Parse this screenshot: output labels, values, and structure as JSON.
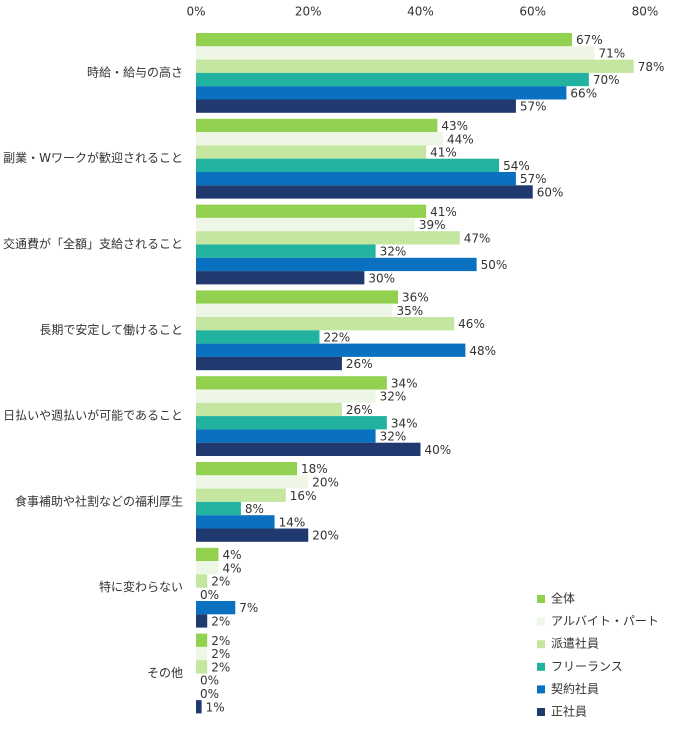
{
  "chart_data": {
    "type": "barh",
    "categories": [
      "時給・給与の高さ",
      "副業・Wワークが歓迎されること",
      "交通費が「全額」支給されること",
      "長期で安定して働けること",
      "日払いや週払いが可能であること",
      "食事補助や社割などの福利厚生",
      "特に変わらない",
      "その他"
    ],
    "series": [
      {
        "name": "全体",
        "color": "#92d050",
        "values": [
          67,
          43,
          41,
          36,
          34,
          18,
          4,
          2
        ],
        "value_labels": [
          "67%",
          "43%",
          "41%",
          "36%",
          "34%",
          "18%",
          "4%",
          "2%"
        ]
      },
      {
        "name": "アルバイト・パート",
        "color": "#eef7e6",
        "values": [
          71,
          44,
          39,
          35,
          32,
          20,
          4,
          2
        ],
        "value_labels": [
          "71%",
          "44%",
          "39%",
          "35%",
          "32%",
          "20%",
          "4%",
          "2%"
        ]
      },
      {
        "name": "派遣社員",
        "color": "#c4e6a0",
        "values": [
          78,
          41,
          47,
          46,
          26,
          16,
          2,
          2
        ],
        "value_labels": [
          "78%",
          "41%",
          "47%",
          "46%",
          "26%",
          "16%",
          "2%",
          "2%"
        ]
      },
      {
        "name": "フリーランス",
        "color": "#21b2a0",
        "values": [
          70,
          54,
          32,
          22,
          34,
          8,
          0,
          0
        ],
        "value_labels": [
          "70%",
          "54%",
          "32%",
          "22%",
          "34%",
          "8%",
          "0%",
          "0%"
        ]
      },
      {
        "name": "契約社員",
        "color": "#0a70c0",
        "values": [
          66,
          57,
          50,
          48,
          32,
          14,
          7,
          0
        ],
        "value_labels": [
          "66%",
          "57%",
          "50%",
          "48%",
          "32%",
          "14%",
          "7%",
          "0%"
        ]
      },
      {
        "name": "正社員",
        "color": "#203a70",
        "values": [
          57,
          60,
          30,
          26,
          40,
          20,
          2,
          1
        ],
        "value_labels": [
          "57%",
          "60%",
          "30%",
          "26%",
          "40%",
          "20%",
          "2%",
          "1%"
        ]
      }
    ],
    "xlim": [
      0,
      80
    ],
    "xticks": [
      {
        "value": 0,
        "label": "0%"
      },
      {
        "value": 20,
        "label": "20%"
      },
      {
        "value": 40,
        "label": "40%"
      },
      {
        "value": 60,
        "label": "60%"
      },
      {
        "value": 80,
        "label": "80%"
      }
    ],
    "legend": "bottom-right"
  }
}
